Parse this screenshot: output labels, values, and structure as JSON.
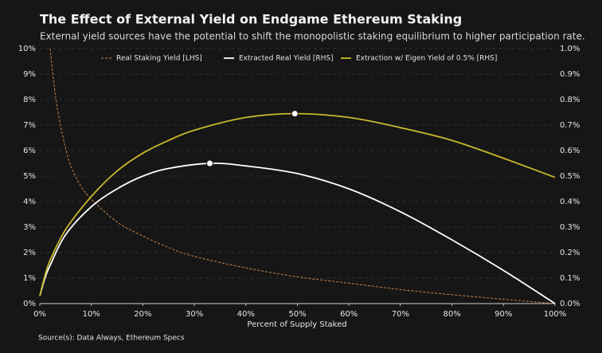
{
  "chart_data": {
    "type": "line",
    "title": "The Effect of External Yield on Endgame Ethereum Staking",
    "subtitle": "External yield sources have the potential to shift the monopolistic staking equilibrium to higher participation rate.",
    "x_label": "Percent of Supply Staked",
    "source": "Source(s): Data Always, Ethereum Specs",
    "xlim": [
      0,
      100
    ],
    "xticks": [
      {
        "value": 0,
        "label": "0%"
      },
      {
        "value": 10,
        "label": "10%"
      },
      {
        "value": 20,
        "label": "20%"
      },
      {
        "value": 30,
        "label": "30%"
      },
      {
        "value": 40,
        "label": "40%"
      },
      {
        "value": 50,
        "label": "50%"
      },
      {
        "value": 60,
        "label": "60%"
      },
      {
        "value": 70,
        "label": "70%"
      },
      {
        "value": 80,
        "label": "80%"
      },
      {
        "value": 90,
        "label": "90%"
      },
      {
        "value": 100,
        "label": "100%"
      }
    ],
    "ylim": [
      0,
      10
    ],
    "yticks": [
      {
        "value": 0,
        "label": "0%"
      },
      {
        "value": 1,
        "label": "1%"
      },
      {
        "value": 2,
        "label": "2%"
      },
      {
        "value": 3,
        "label": "3%"
      },
      {
        "value": 4,
        "label": "4%"
      },
      {
        "value": 5,
        "label": "5%"
      },
      {
        "value": 6,
        "label": "6%"
      },
      {
        "value": 7,
        "label": "7%"
      },
      {
        "value": 8,
        "label": "8%"
      },
      {
        "value": 9,
        "label": "9%"
      },
      {
        "value": 10,
        "label": "10%"
      }
    ],
    "y2lim": [
      0,
      1
    ],
    "y2ticks": [
      {
        "value": 0,
        "label": "0.0%"
      },
      {
        "value": 0.1,
        "label": "0.1%"
      },
      {
        "value": 0.2,
        "label": "0.2%"
      },
      {
        "value": 0.3,
        "label": "0.3%"
      },
      {
        "value": 0.4,
        "label": "0.4%"
      },
      {
        "value": 0.5,
        "label": "0.5%"
      },
      {
        "value": 0.6,
        "label": "0.6%"
      },
      {
        "value": 0.7,
        "label": "0.7%"
      },
      {
        "value": 0.8,
        "label": "0.8%"
      },
      {
        "value": 0.9,
        "label": "0.9%"
      },
      {
        "value": 1,
        "label": "1.0%"
      }
    ],
    "grid": true,
    "legend": "top",
    "series": [
      {
        "name": "Real Staking Yield [LHS]",
        "color": "#c8864a",
        "dashed": true,
        "axis": "y",
        "x": [
          2,
          3,
          4,
          5,
          6,
          8,
          10,
          15,
          20,
          25,
          30,
          40,
          50,
          60,
          70,
          80,
          90,
          100
        ],
        "values": [
          10,
          8.2,
          7,
          6.1,
          5.4,
          4.6,
          4.1,
          3.2,
          2.65,
          2.2,
          1.85,
          1.4,
          1.05,
          0.8,
          0.55,
          0.35,
          0.17,
          0
        ]
      },
      {
        "name": "Extracted Real Yield [RHS]",
        "color": "#ffffff",
        "dashed": false,
        "axis": "y2",
        "x": [
          0,
          1,
          2,
          5,
          10,
          15,
          20,
          25,
          33,
          40,
          50,
          60,
          70,
          80,
          90,
          100
        ],
        "values": [
          0.03,
          0.1,
          0.15,
          0.27,
          0.38,
          0.45,
          0.5,
          0.53,
          0.55,
          0.54,
          0.51,
          0.45,
          0.36,
          0.25,
          0.13,
          0
        ],
        "peak": {
          "x": 33,
          "y": 0.55
        }
      },
      {
        "name": "Extraction w/ Eigen Yield of 0.5% [RHS]",
        "color": "#c9b82a",
        "dashed": false,
        "axis": "y2",
        "x": [
          0,
          1,
          2,
          5,
          10,
          15,
          20,
          25,
          30,
          40,
          49.5,
          60,
          70,
          80,
          90,
          100
        ],
        "values": [
          0.03,
          0.11,
          0.17,
          0.29,
          0.42,
          0.52,
          0.59,
          0.64,
          0.68,
          0.73,
          0.745,
          0.73,
          0.69,
          0.64,
          0.57,
          0.495
        ],
        "peak": {
          "x": 49.5,
          "y": 0.745
        }
      }
    ]
  }
}
